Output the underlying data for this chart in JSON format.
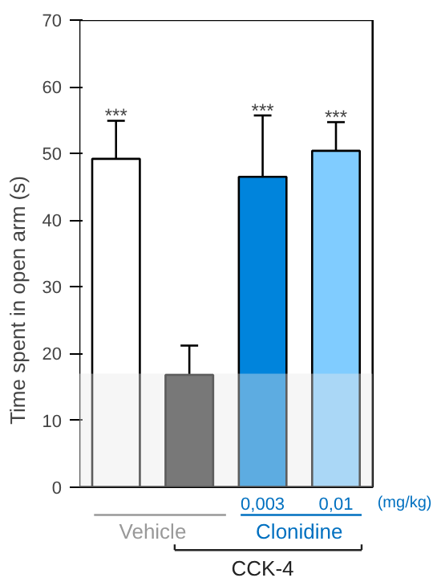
{
  "chart_data": {
    "type": "bar",
    "ylabel": "Time spent in open arm (s)",
    "categories": [
      null,
      null,
      "0,003",
      "0,01"
    ],
    "values": [
      49.2,
      16.8,
      46.5,
      50.4
    ],
    "colors": [
      "#ffffff",
      "#2d2d2d",
      "#0084dc",
      "#80ccff"
    ],
    "errors": [
      5.7,
      4.4,
      9.2,
      4.3
    ],
    "ylim": [
      0,
      70
    ],
    "yticks": [
      0,
      10,
      20,
      30,
      40,
      50,
      60,
      70
    ],
    "bands": [
      {
        "axis": "y",
        "from": 0,
        "to": 17,
        "color": "#e8e8e8"
      }
    ],
    "annotations": [
      {
        "text": "***",
        "y": 54.9
      },
      {
        "text": "***",
        "x": "0,003",
        "y": 55.7
      },
      {
        "text": "***",
        "x": "0,01",
        "y": 54.7
      },
      "(mg/kg)",
      "Vehicle",
      "Clonidine",
      "CCK-4"
    ]
  }
}
